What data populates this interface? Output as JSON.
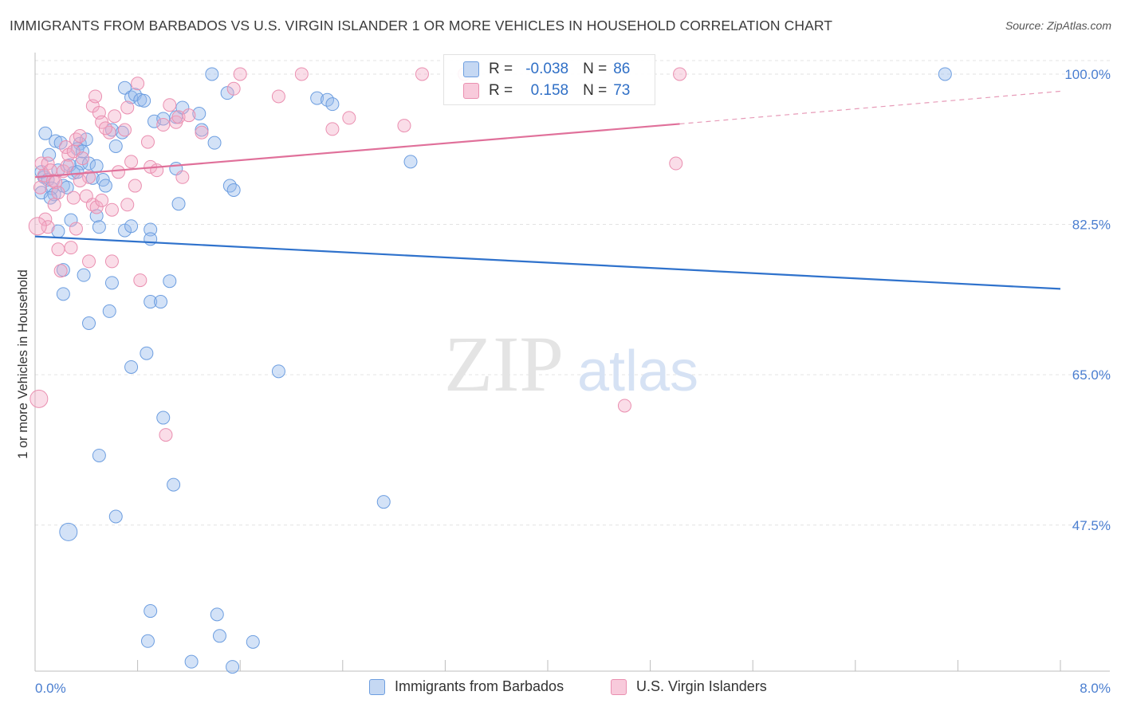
{
  "header": {
    "title": "IMMIGRANTS FROM BARBADOS VS U.S. VIRGIN ISLANDER 1 OR MORE VEHICLES IN HOUSEHOLD CORRELATION CHART",
    "source": "Source: ZipAtlas.com"
  },
  "watermark": {
    "zip": "ZIP",
    "atlas": "atlas"
  },
  "stats_box": {
    "rows": [
      {
        "r_label": "R =",
        "r_value": "-0.038",
        "n_label": "N =",
        "n_value": "86",
        "color": "#6d9ee0"
      },
      {
        "r_label": "R =",
        "r_value": "0.158",
        "n_label": "N =",
        "n_value": "73",
        "color": "#ea8fb0"
      }
    ]
  },
  "legend": {
    "items": [
      {
        "label": "Immigrants from Barbados",
        "color": "#6d9ee0"
      },
      {
        "label": "U.S. Virgin Islanders",
        "color": "#ea8fb0"
      }
    ]
  },
  "chart_data": {
    "type": "scatter",
    "title": "IMMIGRANTS FROM BARBADOS VS U.S. VIRGIN ISLANDER 1 OR MORE VEHICLES IN HOUSEHOLD CORRELATION CHART",
    "xlabel": "",
    "ylabel": "1 or more Vehicles in Household",
    "xlim": [
      0,
      8
    ],
    "ylim": [
      30.5,
      102.5
    ],
    "x_tick_labels": [
      "0.0%",
      "8.0%"
    ],
    "y_ticks": [
      47.5,
      65.0,
      82.5,
      100.0
    ],
    "y_tick_labels": [
      "47.5%",
      "65.0%",
      "82.5%",
      "100.0%"
    ],
    "grid": true,
    "legend_position": "bottom-center",
    "series": [
      {
        "name": "Immigrants from Barbados",
        "color": "#6d9ee0",
        "trend": {
          "x": [
            0,
            8
          ],
          "y": [
            81.1,
            75.0
          ],
          "dashed_from": null
        },
        "points": [
          [
            0.05,
            88.6
          ],
          [
            0.07,
            88.0
          ],
          [
            0.05,
            86.2
          ],
          [
            0.1,
            87.7
          ],
          [
            0.13,
            86.7
          ],
          [
            0.15,
            86.0
          ],
          [
            0.16,
            92.2
          ],
          [
            0.2,
            92.0
          ],
          [
            0.11,
            90.6
          ],
          [
            0.12,
            85.6
          ],
          [
            0.18,
            88.8
          ],
          [
            0.22,
            87.0
          ],
          [
            0.25,
            86.8
          ],
          [
            0.27,
            89.4
          ],
          [
            0.3,
            88.5
          ],
          [
            0.35,
            91.9
          ],
          [
            0.33,
            91.3
          ],
          [
            0.36,
            89.6
          ],
          [
            0.4,
            92.4
          ],
          [
            0.42,
            89.6
          ],
          [
            0.45,
            87.9
          ],
          [
            0.48,
            89.3
          ],
          [
            0.53,
            87.7
          ],
          [
            0.55,
            87.0
          ],
          [
            0.37,
            91.0
          ],
          [
            0.6,
            93.5
          ],
          [
            0.63,
            91.6
          ],
          [
            0.68,
            93.2
          ],
          [
            0.7,
            98.4
          ],
          [
            0.75,
            97.3
          ],
          [
            0.78,
            97.6
          ],
          [
            0.82,
            97.0
          ],
          [
            0.85,
            96.9
          ],
          [
            0.93,
            94.5
          ],
          [
            1.0,
            94.8
          ],
          [
            1.1,
            95.0
          ],
          [
            1.15,
            96.1
          ],
          [
            1.28,
            95.4
          ],
          [
            1.3,
            93.5
          ],
          [
            1.38,
            100.0
          ],
          [
            1.5,
            97.8
          ],
          [
            1.52,
            87.0
          ],
          [
            1.55,
            86.5
          ],
          [
            2.2,
            97.2
          ],
          [
            2.28,
            97.0
          ],
          [
            2.32,
            96.5
          ],
          [
            2.93,
            89.8
          ],
          [
            7.1,
            100.0
          ],
          [
            0.28,
            83.0
          ],
          [
            0.18,
            81.7
          ],
          [
            0.48,
            83.5
          ],
          [
            0.5,
            82.2
          ],
          [
            0.7,
            81.8
          ],
          [
            0.75,
            82.3
          ],
          [
            0.9,
            81.9
          ],
          [
            0.9,
            80.8
          ],
          [
            1.12,
            84.9
          ],
          [
            1.1,
            89.0
          ],
          [
            1.4,
            92.0
          ],
          [
            0.22,
            77.2
          ],
          [
            0.38,
            76.6
          ],
          [
            0.6,
            75.7
          ],
          [
            0.22,
            74.4
          ],
          [
            0.58,
            72.4
          ],
          [
            0.9,
            73.5
          ],
          [
            0.98,
            73.5
          ],
          [
            0.42,
            71.0
          ],
          [
            0.87,
            67.5
          ],
          [
            0.75,
            65.9
          ],
          [
            1.05,
            75.9
          ],
          [
            1.9,
            65.4
          ],
          [
            1.0,
            60.0
          ],
          [
            0.5,
            55.6
          ],
          [
            1.08,
            52.2
          ],
          [
            2.72,
            50.2
          ],
          [
            0.63,
            48.5
          ],
          [
            0.26,
            46.7
          ],
          [
            0.9,
            37.5
          ],
          [
            1.42,
            37.1
          ],
          [
            0.88,
            34.0
          ],
          [
            1.44,
            34.6
          ],
          [
            1.7,
            33.9
          ],
          [
            1.22,
            31.6
          ],
          [
            1.54,
            31.0
          ],
          [
            0.08,
            93.1
          ],
          [
            0.33,
            88.6
          ]
        ]
      },
      {
        "name": "U.S. Virgin Islanders",
        "color": "#ea8fb0",
        "trend": {
          "x": [
            0,
            5.03
          ],
          "y": [
            88.0,
            94.2
          ],
          "dashed_to": [
            8,
            98.0
          ]
        },
        "points": [
          [
            0.05,
            89.6
          ],
          [
            0.07,
            88.2
          ],
          [
            0.1,
            89.6
          ],
          [
            0.12,
            88.8
          ],
          [
            0.14,
            87.6
          ],
          [
            0.16,
            87.4
          ],
          [
            0.18,
            86.2
          ],
          [
            0.22,
            88.7
          ],
          [
            0.24,
            91.5
          ],
          [
            0.26,
            90.6
          ],
          [
            0.3,
            91.0
          ],
          [
            0.32,
            92.4
          ],
          [
            0.35,
            92.8
          ],
          [
            0.37,
            90.2
          ],
          [
            0.42,
            88.0
          ],
          [
            0.45,
            96.3
          ],
          [
            0.47,
            97.4
          ],
          [
            0.5,
            95.5
          ],
          [
            0.52,
            94.4
          ],
          [
            0.58,
            93.2
          ],
          [
            0.62,
            95.1
          ],
          [
            0.7,
            93.5
          ],
          [
            0.72,
            96.1
          ],
          [
            0.75,
            89.8
          ],
          [
            0.8,
            98.9
          ],
          [
            0.9,
            89.2
          ],
          [
            0.95,
            88.8
          ],
          [
            1.0,
            94.1
          ],
          [
            1.05,
            96.4
          ],
          [
            1.1,
            94.4
          ],
          [
            1.12,
            95.0
          ],
          [
            1.15,
            88.0
          ],
          [
            1.3,
            93.2
          ],
          [
            1.6,
            100.0
          ],
          [
            1.55,
            98.3
          ],
          [
            1.9,
            97.4
          ],
          [
            2.08,
            100.0
          ],
          [
            2.32,
            93.6
          ],
          [
            2.45,
            94.9
          ],
          [
            2.88,
            94.0
          ],
          [
            3.02,
            100.0
          ],
          [
            3.35,
            100.0
          ],
          [
            5.0,
            89.6
          ],
          [
            5.03,
            100.0
          ],
          [
            0.4,
            85.8
          ],
          [
            0.45,
            84.8
          ],
          [
            0.48,
            84.5
          ],
          [
            0.52,
            85.3
          ],
          [
            0.6,
            84.2
          ],
          [
            0.72,
            84.8
          ],
          [
            0.08,
            83.1
          ],
          [
            0.1,
            82.2
          ],
          [
            0.18,
            79.6
          ],
          [
            0.28,
            79.8
          ],
          [
            0.32,
            82.0
          ],
          [
            0.42,
            78.2
          ],
          [
            0.6,
            78.2
          ],
          [
            0.2,
            77.1
          ],
          [
            0.82,
            76.0
          ],
          [
            4.6,
            61.4
          ],
          [
            1.02,
            58.0
          ],
          [
            0.03,
            62.2
          ],
          [
            0.02,
            82.3
          ],
          [
            0.25,
            89.3
          ],
          [
            0.35,
            87.6
          ],
          [
            0.55,
            93.7
          ],
          [
            0.65,
            88.6
          ],
          [
            0.78,
            87.0
          ],
          [
            0.88,
            92.1
          ],
          [
            1.2,
            95.2
          ],
          [
            0.15,
            84.8
          ],
          [
            0.3,
            85.6
          ],
          [
            0.04,
            86.8
          ]
        ]
      }
    ]
  }
}
